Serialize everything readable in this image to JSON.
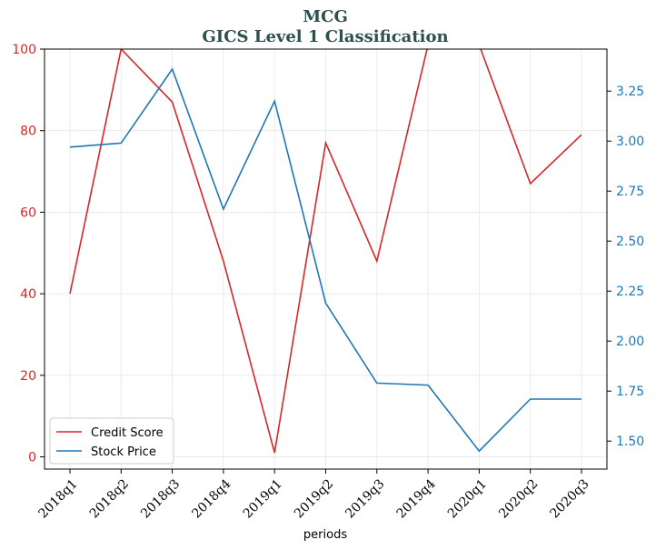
{
  "chart_data": {
    "type": "line",
    "title": "MCG",
    "subtitle": "GICS Level 1 Classification",
    "xlabel": "periods",
    "categories": [
      "2018q1",
      "2018q2",
      "2018q3",
      "2018q4",
      "2019q1",
      "2019q2",
      "2019q3",
      "2019q4",
      "2020q1",
      "2020q2",
      "2020q3"
    ],
    "series": [
      {
        "name": "Credit Score",
        "axis": "left",
        "color": "#d62728",
        "values": [
          40,
          100,
          87,
          48,
          1,
          77,
          48,
          101,
          101,
          67,
          79
        ]
      },
      {
        "name": "Stock Price",
        "axis": "right",
        "color": "#1f77b4",
        "values": [
          2.97,
          2.99,
          3.36,
          2.66,
          3.2,
          2.19,
          1.79,
          1.78,
          1.45,
          1.71,
          1.71
        ]
      }
    ],
    "left_axis": {
      "ylim": [
        -3,
        100
      ],
      "ticks": [
        0,
        20,
        40,
        60,
        80,
        100
      ],
      "color": "#d62728"
    },
    "right_axis": {
      "ylim": [
        1.36,
        3.46
      ],
      "ticks": [
        "1.50",
        "1.75",
        "2.00",
        "2.25",
        "2.50",
        "2.75",
        "3.00",
        "3.25"
      ],
      "color": "#1f77b4"
    },
    "grid": true,
    "legend_position": "bottom-left"
  }
}
